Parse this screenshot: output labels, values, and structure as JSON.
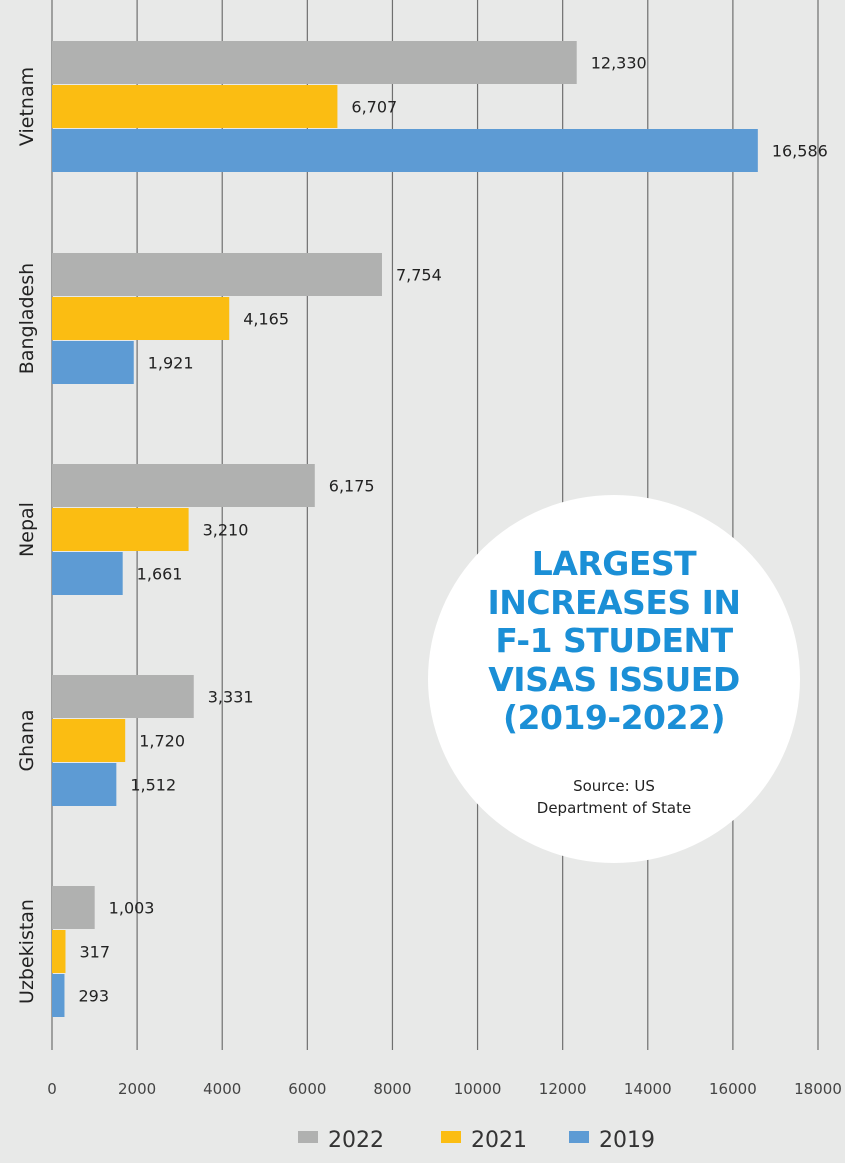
{
  "chart_data": {
    "type": "bar",
    "orientation": "horizontal",
    "categories": [
      "Vietnam",
      "Bangladesh",
      "Nepal",
      "Ghana",
      "Uzbekistan"
    ],
    "series": [
      {
        "name": "2022",
        "color": "#b0b1b0",
        "values": [
          12330,
          7754,
          6175,
          3331,
          1003
        ],
        "labels": [
          "12,330",
          "7,754",
          "6,175",
          "3,331",
          "1,003"
        ]
      },
      {
        "name": "2021",
        "color": "#fbbd12",
        "values": [
          6707,
          4165,
          3210,
          1720,
          317
        ],
        "labels": [
          "6,707",
          "4,165",
          "3,210",
          "1,720",
          "317"
        ]
      },
      {
        "name": "2019",
        "color": "#5d9bd4",
        "values": [
          16586,
          1921,
          1661,
          1512,
          293
        ],
        "labels": [
          "16,586",
          "1,921",
          "1,661",
          "1,512",
          "293"
        ]
      }
    ],
    "xlim": [
      0,
      18000
    ],
    "xticks": [
      0,
      2000,
      4000,
      6000,
      8000,
      10000,
      12000,
      14000,
      16000,
      18000
    ],
    "grid": true,
    "legend_position": "bottom"
  },
  "callout": {
    "title": "LARGEST\nINCREASES IN\nF-1 STUDENT\nVISAS ISSUED\n(2019-2022)",
    "source": "Source: US\nDepartment of State",
    "title_color": "#1b8fd6"
  }
}
